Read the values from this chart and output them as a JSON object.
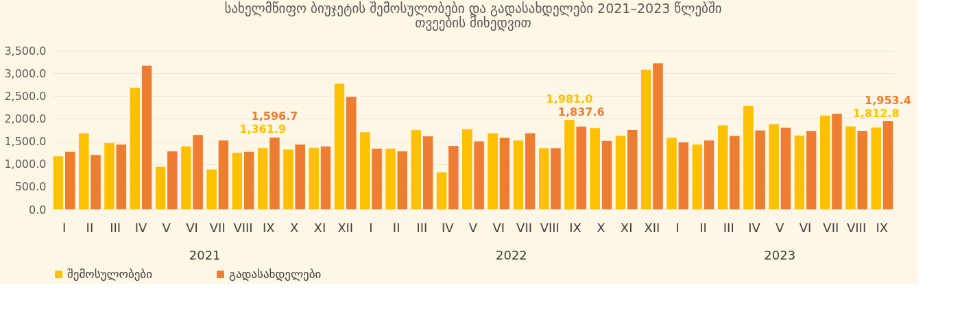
{
  "chart_data": {
    "type": "bar",
    "title": "სახელმწიფო ბიუჯეტის შემოსულობები და გადასახდელები 2021–2023 წლებში თვეების მიხედვით",
    "categories": [
      "I",
      "II",
      "III",
      "IV",
      "V",
      "VI",
      "VII",
      "VIII",
      "IX",
      "X",
      "XI",
      "XII",
      "I",
      "II",
      "III",
      "IV",
      "V",
      "VI",
      "VII",
      "VIII",
      "IX",
      "X",
      "XI",
      "XII",
      "I",
      "II",
      "III",
      "IV",
      "V",
      "VI",
      "VII",
      "VIII",
      "IX"
    ],
    "series": [
      {
        "name": "შემოსულობები",
        "color": "#ffc000",
        "values": [
          1180,
          1690,
          1470,
          2690,
          950,
          1400,
          890,
          1260,
          1361.9,
          1330,
          1370,
          2780,
          1710,
          1350,
          1760,
          830,
          1780,
          1690,
          1530,
          1360,
          1981.0,
          1800,
          1630,
          3090,
          1590,
          1440,
          1860,
          2290,
          1890,
          1640,
          2080,
          1840,
          1812.8
        ],
        "value_labels": [
          null,
          null,
          null,
          null,
          null,
          null,
          null,
          null,
          "1,361.9",
          null,
          null,
          null,
          null,
          null,
          null,
          null,
          null,
          null,
          null,
          null,
          "1,981.0",
          null,
          null,
          null,
          null,
          null,
          null,
          null,
          null,
          null,
          null,
          null,
          "1,812.8"
        ]
      },
      {
        "name": "გადასახდელები",
        "color": "#ed7d31",
        "values": [
          1280,
          1210,
          1440,
          3180,
          1290,
          1650,
          1530,
          1280,
          1596.7,
          1440,
          1400,
          2490,
          1350,
          1290,
          1620,
          1410,
          1510,
          1590,
          1690,
          1360,
          1837.6,
          1520,
          1760,
          3230,
          1490,
          1530,
          1630,
          1750,
          1810,
          1740,
          2120,
          1740,
          1953.4
        ],
        "value_labels": [
          null,
          null,
          null,
          null,
          null,
          null,
          null,
          null,
          "1,596.7",
          null,
          null,
          null,
          null,
          null,
          null,
          null,
          null,
          null,
          null,
          null,
          "1,837.6",
          null,
          null,
          null,
          null,
          null,
          null,
          null,
          null,
          null,
          null,
          null,
          "1,953.4"
        ]
      }
    ],
    "annotations": [
      "2021",
      "2022",
      "2023"
    ],
    "ylim": [
      0,
      3500
    ],
    "yticks": [
      {
        "value": 0,
        "label": "0.0"
      },
      {
        "value": 500,
        "label": "500.0"
      },
      {
        "value": 1000,
        "label": "1,000.0"
      },
      {
        "value": 1500,
        "label": "1,500.0"
      },
      {
        "value": 2000,
        "label": "2,000.0"
      },
      {
        "value": 2500,
        "label": "2,500.0"
      },
      {
        "value": 3000,
        "label": "3,000.0"
      },
      {
        "value": 3500,
        "label": "3,500.0"
      }
    ],
    "grid": "y",
    "legend": "bottom"
  }
}
